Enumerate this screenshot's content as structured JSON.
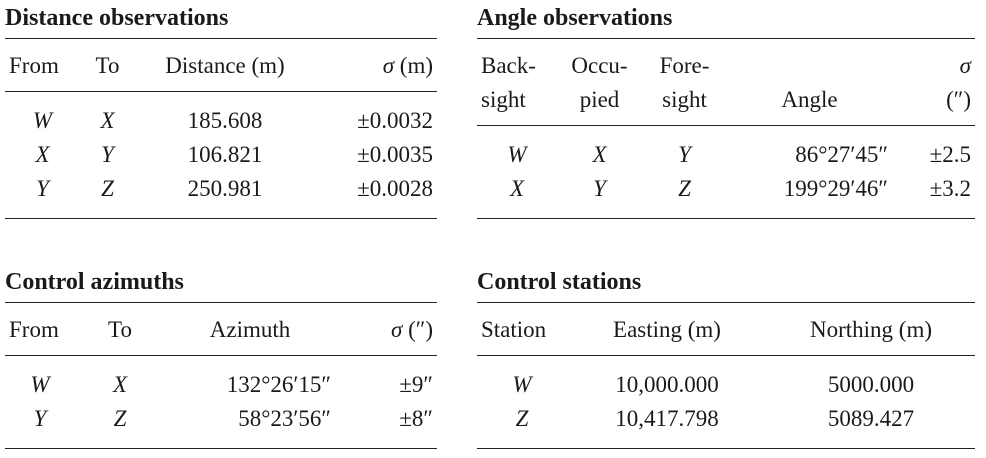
{
  "distance": {
    "title": "Distance observations",
    "headers": [
      [
        "From"
      ],
      [
        "To"
      ],
      [
        "Distance (m)"
      ],
      [
        "σ (m)"
      ]
    ],
    "rows": [
      [
        "W",
        "X",
        "185.608",
        "±0.0032"
      ],
      [
        "X",
        "Y",
        "106.821",
        "±0.0035"
      ],
      [
        "Y",
        "Z",
        "250.981",
        "±0.0028"
      ]
    ]
  },
  "angle": {
    "title": "Angle observations",
    "headers": [
      [
        "Back-",
        "sight"
      ],
      [
        "Occu-",
        "pied"
      ],
      [
        "Fore-",
        "sight"
      ],
      [
        "Angle"
      ],
      [
        "σ",
        "(″)"
      ]
    ],
    "rows": [
      [
        "W",
        "X",
        "Y",
        "86°27′45″",
        "±2.5"
      ],
      [
        "X",
        "Y",
        "Z",
        "199°29′46″",
        "±3.2"
      ]
    ]
  },
  "azimuths": {
    "title": "Control azimuths",
    "headers": [
      [
        "From"
      ],
      [
        "To"
      ],
      [
        "Azimuth"
      ],
      [
        "σ (″)"
      ]
    ],
    "rows": [
      [
        "W",
        "X",
        "132°26′15″",
        "±9″"
      ],
      [
        "Y",
        "Z",
        "58°23′56″",
        "±8″"
      ]
    ]
  },
  "stations": {
    "title": "Control stations",
    "headers": [
      [
        "Station"
      ],
      [
        "Easting (m)"
      ],
      [
        "Northing (m)"
      ]
    ],
    "rows": [
      [
        "W",
        "10,000.000",
        "5000.000"
      ],
      [
        "Z",
        "10,417.798",
        "5089.427"
      ]
    ]
  }
}
